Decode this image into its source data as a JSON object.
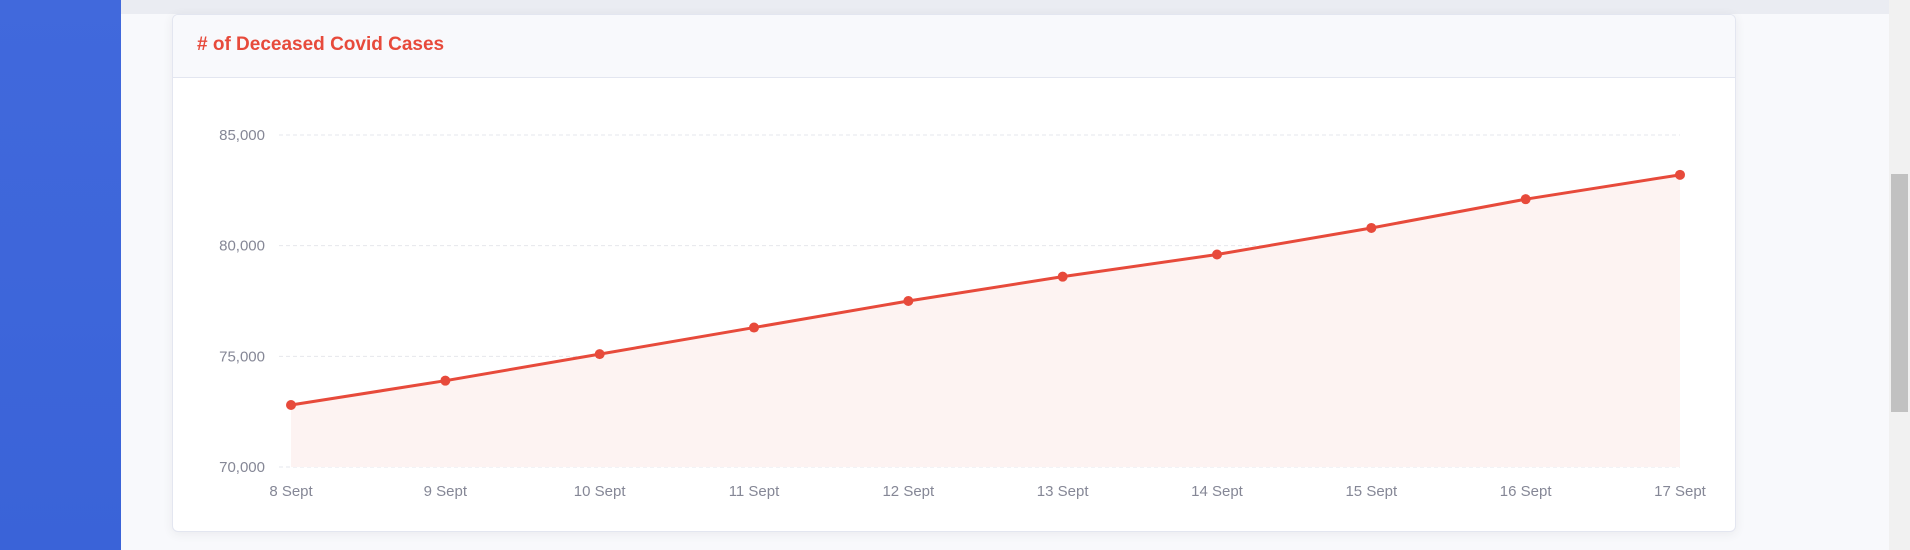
{
  "card": {
    "title": "# of Deceased Covid Cases"
  },
  "colors": {
    "accent": "#e74a3b",
    "area_fill": "#fdf3f2",
    "sidebar": "#4169dc",
    "grid": "#e6e7ec",
    "tick_text": "#858796"
  },
  "chart_data": {
    "type": "area",
    "title": "# of Deceased Covid Cases",
    "xlabel": "",
    "ylabel": "",
    "categories": [
      "8 Sept",
      "9 Sept",
      "10 Sept",
      "11 Sept",
      "12 Sept",
      "13 Sept",
      "14 Sept",
      "15 Sept",
      "16 Sept",
      "17 Sept"
    ],
    "series": [
      {
        "values": [
          72800,
          73900,
          75100,
          76300,
          77500,
          78600,
          79600,
          80800,
          82100,
          83200
        ]
      }
    ],
    "ylim": [
      70000,
      85000
    ],
    "yticks": [
      70000,
      75000,
      80000,
      85000
    ],
    "ytick_labels": [
      "70,000",
      "75,000",
      "80,000",
      "85,000"
    ],
    "grid": true,
    "legend": "none"
  }
}
